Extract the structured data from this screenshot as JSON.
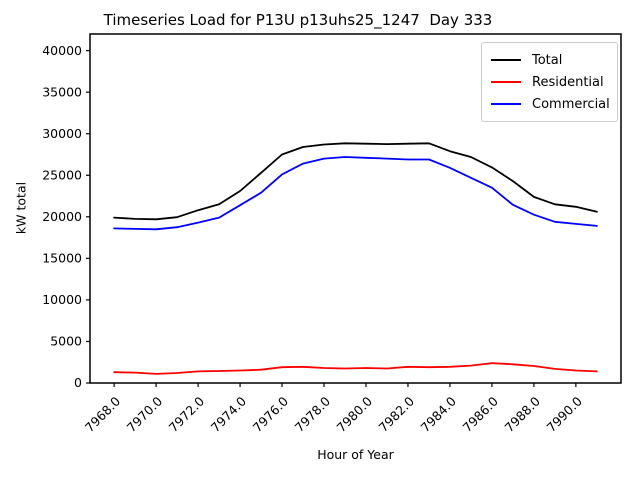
{
  "chart_data": {
    "type": "line",
    "title": "Timeseries Load for P13U p13uhs25_1247  Day 333",
    "xlabel": "Hour of Year",
    "ylabel": "kW total",
    "grid": false,
    "legend_position": "upper right",
    "xlim": [
      7966.85,
      7992.15
    ],
    "ylim": [
      0,
      42000
    ],
    "x_ticks": [
      "7968.0",
      "7970.0",
      "7972.0",
      "7974.0",
      "7976.0",
      "7978.0",
      "7980.0",
      "7982.0",
      "7984.0",
      "7986.0",
      "7988.0",
      "7990.0"
    ],
    "y_ticks": [
      0,
      5000,
      10000,
      15000,
      20000,
      25000,
      30000,
      35000,
      40000
    ],
    "x": [
      7968,
      7969,
      7970,
      7971,
      7972,
      7973,
      7974,
      7975,
      7976,
      7977,
      7978,
      7979,
      7980,
      7981,
      7982,
      7983,
      7984,
      7985,
      7986,
      7987,
      7988,
      7989,
      7990,
      7991
    ],
    "series": [
      {
        "name": "Total",
        "color": "#000000",
        "values": [
          19900,
          19750,
          19700,
          19950,
          20800,
          21500,
          23100,
          25300,
          27500,
          28400,
          28700,
          28850,
          28800,
          28750,
          28800,
          28850,
          27900,
          27200,
          25950,
          24300,
          22400,
          21500,
          21200,
          20600
        ]
      },
      {
        "name": "Residential",
        "color": "#ff0000",
        "values": [
          1300,
          1250,
          1100,
          1200,
          1400,
          1450,
          1500,
          1600,
          1900,
          1950,
          1800,
          1750,
          1800,
          1750,
          1950,
          1900,
          1950,
          2100,
          2400,
          2250,
          2050,
          1700,
          1500,
          1400
        ]
      },
      {
        "name": "Commercial",
        "color": "#0000ff",
        "values": [
          18600,
          18550,
          18500,
          18750,
          19300,
          19900,
          21400,
          22900,
          25100,
          26400,
          27000,
          27200,
          27100,
          27000,
          26900,
          26900,
          25900,
          24700,
          23500,
          21450,
          20250,
          19400,
          19150,
          18900
        ]
      }
    ]
  }
}
